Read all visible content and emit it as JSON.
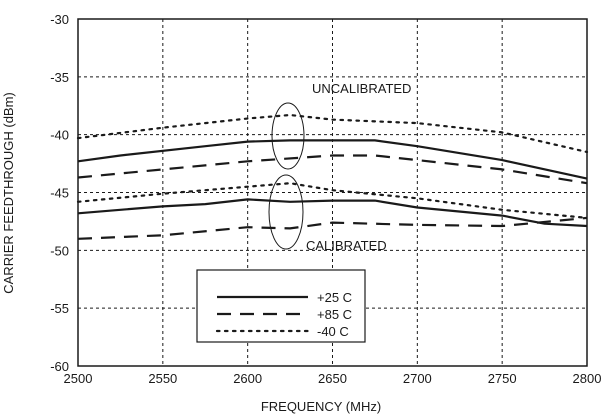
{
  "chart_data": {
    "type": "line",
    "xlabel": "FREQUENCY (MHz)",
    "ylabel": "CARRIER FEEDTHROUGH (dBm)",
    "xlim": [
      2500,
      2800
    ],
    "ylim": [
      -60,
      -30
    ],
    "xticks": [
      2500,
      2550,
      2600,
      2650,
      2700,
      2750,
      2800
    ],
    "yticks": [
      -30,
      -35,
      -40,
      -45,
      -50,
      -55,
      -60
    ],
    "grid": true,
    "legend_position": "bottom-center",
    "annotations": [
      "UNCALIBRATED",
      "CALIBRATED"
    ],
    "series": [
      {
        "name": "+25 C",
        "group": "uncalibrated",
        "style": "solid",
        "x": [
          2500,
          2525,
          2575,
          2600,
          2625,
          2650,
          2675,
          2700,
          2750,
          2800
        ],
        "y": [
          -42.3,
          -41.8,
          -41.0,
          -40.6,
          -40.5,
          -40.5,
          -40.5,
          -41.0,
          -42.2,
          -43.8
        ]
      },
      {
        "name": "+85 C",
        "group": "uncalibrated",
        "style": "dashed",
        "x": [
          2500,
          2550,
          2600,
          2650,
          2675,
          2700,
          2750,
          2800
        ],
        "y": [
          -43.7,
          -43.0,
          -42.3,
          -41.8,
          -41.8,
          -42.2,
          -43.0,
          -44.2
        ]
      },
      {
        "name": "-40 C",
        "group": "uncalibrated",
        "style": "dotted",
        "x": [
          2500,
          2550,
          2600,
          2625,
          2650,
          2700,
          2750,
          2800
        ],
        "y": [
          -40.3,
          -39.4,
          -38.6,
          -38.3,
          -38.7,
          -39.0,
          -39.8,
          -41.5
        ]
      },
      {
        "name": "+25 C",
        "group": "calibrated",
        "style": "solid",
        "x": [
          2500,
          2525,
          2550,
          2575,
          2600,
          2625,
          2650,
          2675,
          2700,
          2750,
          2775,
          2800
        ],
        "y": [
          -46.8,
          -46.5,
          -46.2,
          -46.0,
          -45.6,
          -45.8,
          -45.7,
          -45.7,
          -46.3,
          -47.0,
          -47.7,
          -47.9
        ]
      },
      {
        "name": "+85 C",
        "group": "calibrated",
        "style": "dashed",
        "x": [
          2500,
          2550,
          2600,
          2625,
          2650,
          2700,
          2750,
          2800
        ],
        "y": [
          -49.0,
          -48.7,
          -48.0,
          -48.1,
          -47.6,
          -47.8,
          -47.9,
          -47.2
        ]
      },
      {
        "name": "-40 C",
        "group": "calibrated",
        "style": "dotted",
        "x": [
          2500,
          2550,
          2600,
          2625,
          2650,
          2700,
          2750,
          2800
        ],
        "y": [
          -45.8,
          -45.1,
          -44.5,
          -44.2,
          -44.8,
          -45.5,
          -46.5,
          -47.2
        ]
      }
    ],
    "legend": [
      {
        "label": "+25 C",
        "style": "solid"
      },
      {
        "label": "+85 C",
        "style": "dashed"
      },
      {
        "label": "-40 C",
        "style": "dotted"
      }
    ]
  }
}
